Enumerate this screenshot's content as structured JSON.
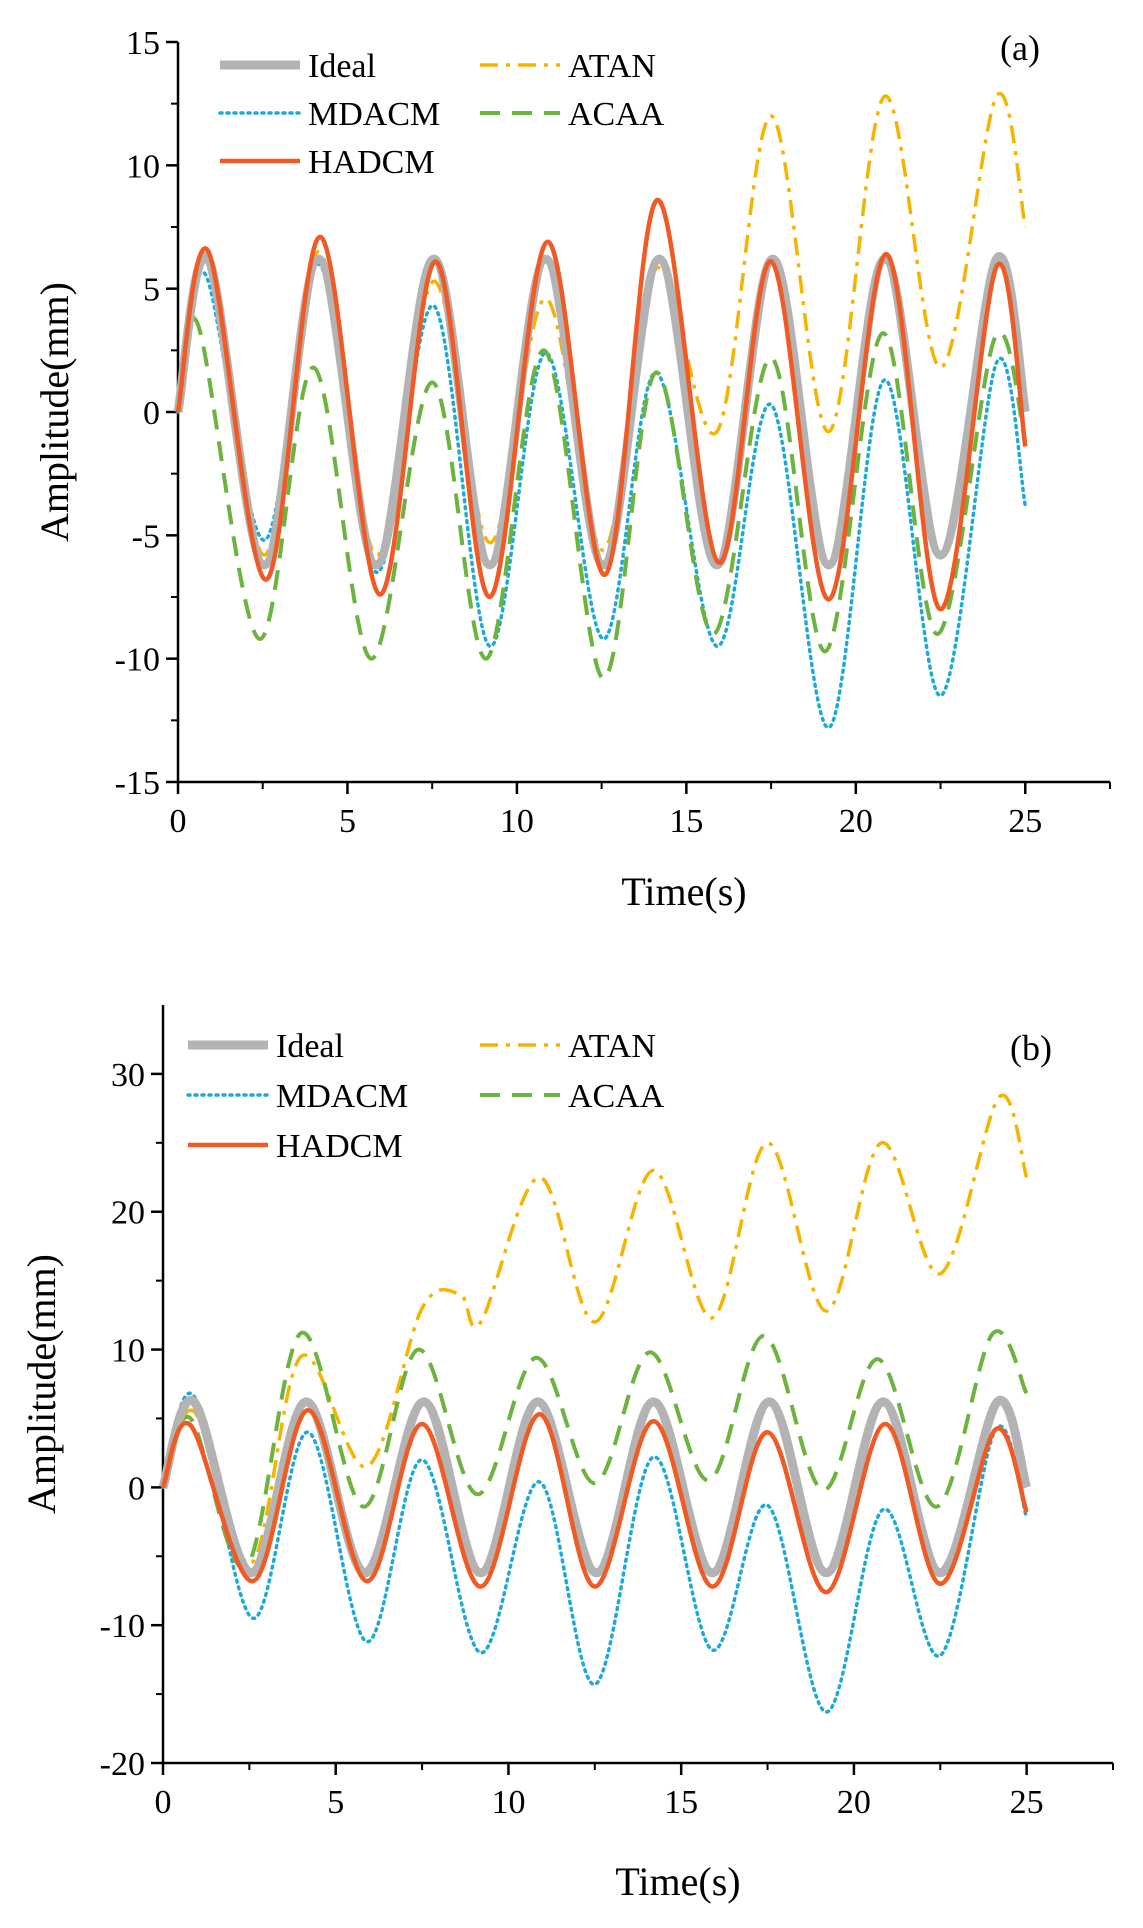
{
  "chart_data": [
    {
      "panel": "(a)",
      "type": "line",
      "xlabel": "Time(s)",
      "ylabel": "Amplitude(mm)",
      "xlim": [
        0,
        27.5
      ],
      "ylim": [
        -15,
        15
      ],
      "xticks": [
        "0",
        "5",
        "10",
        "15",
        "20",
        "25"
      ],
      "yticks": [
        "-15",
        "-10",
        "-5",
        "0",
        "5",
        "10",
        "15"
      ],
      "xtick_values": [
        0,
        5,
        10,
        15,
        20,
        25
      ],
      "ytick_values": [
        -15,
        -10,
        -5,
        0,
        5,
        10,
        15
      ],
      "legend": [
        "Ideal",
        "ATAN",
        "MDACM",
        "ACAA",
        "HADCM"
      ],
      "series": [
        {
          "name": "Ideal",
          "color": "#b3b3b3",
          "style": "solid-thick",
          "x": [
            0,
            0.9,
            2.55,
            4.15,
            5.85,
            7.55,
            9.2,
            10.85,
            12.55,
            14.2,
            15.9,
            17.55,
            19.2,
            20.85,
            22.5,
            24.15,
            25
          ],
          "y": [
            0,
            6.2,
            -6.2,
            6.2,
            -6.2,
            6.2,
            -6.2,
            6.2,
            -6.2,
            6.2,
            -6.2,
            6.2,
            -6.2,
            6.2,
            -5.8,
            6.2,
            0
          ]
        },
        {
          "name": "ATAN",
          "color": "#f5b400",
          "style": "dashdot",
          "x": [
            0,
            0.9,
            2.55,
            4.15,
            5.85,
            7.55,
            9.2,
            10.85,
            12.55,
            14.1,
            15.9,
            17.5,
            19.2,
            20.85,
            22.5,
            24.15,
            25
          ],
          "y": [
            0,
            6.2,
            -5.8,
            6.5,
            -5.8,
            5.3,
            -5.3,
            4.6,
            -5.6,
            5.8,
            -0.8,
            12.0,
            -0.8,
            12.8,
            1.8,
            12.8,
            7.5
          ]
        },
        {
          "name": "MDACM",
          "color": "#1fa9d6",
          "style": "dotted",
          "x": [
            0,
            0.8,
            2.55,
            4.15,
            5.85,
            7.55,
            9.2,
            10.85,
            12.55,
            14.1,
            15.9,
            17.5,
            19.2,
            20.85,
            22.5,
            24.15,
            25
          ],
          "y": [
            0,
            5.6,
            -5.2,
            6.0,
            -6.5,
            4.3,
            -9.5,
            2.4,
            -9.2,
            1.6,
            -9.5,
            0.3,
            -12.8,
            1.3,
            -11.5,
            2.0,
            -3.8
          ]
        },
        {
          "name": "ACAA",
          "color": "#6db33f",
          "style": "dashed",
          "x": [
            0,
            0.6,
            2.4,
            4.0,
            5.7,
            7.5,
            9.1,
            10.8,
            12.55,
            14.1,
            15.8,
            17.5,
            19.1,
            20.8,
            22.4,
            24.1,
            25
          ],
          "y": [
            0,
            3.5,
            -9.2,
            1.8,
            -10.0,
            1.2,
            -10.0,
            2.5,
            -10.8,
            1.6,
            -9.0,
            2.2,
            -9.7,
            3.2,
            -9.0,
            3.0,
            -1.2
          ]
        },
        {
          "name": "HADCM",
          "color": "#f05a24",
          "style": "solid",
          "x": [
            0,
            0.9,
            2.6,
            4.2,
            5.95,
            7.6,
            9.2,
            10.9,
            12.6,
            14.15,
            15.95,
            17.5,
            19.2,
            20.9,
            22.5,
            24.15,
            25
          ],
          "y": [
            0,
            6.5,
            -6.8,
            7.1,
            -7.4,
            6.1,
            -7.5,
            6.9,
            -6.6,
            8.6,
            -6.1,
            6.1,
            -7.6,
            6.4,
            -8.0,
            5.9,
            -1.4
          ]
        }
      ]
    },
    {
      "panel": "(b)",
      "type": "line",
      "xlabel": "Time(s)",
      "ylabel": "Amplitude(mm)",
      "xlim": [
        0,
        27.5
      ],
      "ylim": [
        -20,
        35
      ],
      "xticks": [
        "0",
        "5",
        "10",
        "15",
        "20",
        "25"
      ],
      "yticks": [
        "-20",
        "-10",
        "0",
        "10",
        "20",
        "30"
      ],
      "xtick_values": [
        0,
        5,
        10,
        15,
        20,
        25
      ],
      "ytick_values": [
        -20,
        -10,
        0,
        10,
        20,
        30
      ],
      "legend": [
        "Ideal",
        "ATAN",
        "MDACM",
        "ACAA",
        "HADCM"
      ],
      "series": [
        {
          "name": "Ideal",
          "color": "#b3b3b3",
          "style": "solid-thick",
          "x": [
            0,
            0.9,
            2.55,
            4.15,
            5.85,
            7.55,
            9.2,
            10.85,
            12.55,
            14.2,
            15.9,
            17.55,
            19.2,
            20.85,
            22.5,
            24.15,
            25
          ],
          "y": [
            0,
            6.2,
            -6.2,
            6.2,
            -6.2,
            6.2,
            -6.2,
            6.2,
            -6.2,
            6.2,
            -6.2,
            6.2,
            -6.2,
            6.2,
            -6.2,
            6.2,
            0
          ]
        },
        {
          "name": "ATAN",
          "color": "#f5b400",
          "style": "dashdot",
          "x": [
            0,
            0.9,
            2.55,
            4.0,
            5.9,
            7.5,
            8.6,
            9.2,
            10.9,
            12.5,
            14.2,
            15.9,
            17.5,
            19.2,
            20.8,
            22.5,
            24.2,
            25
          ],
          "y": [
            0,
            5.5,
            -5.5,
            9.5,
            1.5,
            13.0,
            14.0,
            12.0,
            22.5,
            12.0,
            23.0,
            12.3,
            25.0,
            12.8,
            25.0,
            15.5,
            28.3,
            22.5
          ]
        },
        {
          "name": "MDACM",
          "color": "#1fa9d6",
          "style": "dotted",
          "x": [
            0,
            0.9,
            2.6,
            4.2,
            5.9,
            7.5,
            9.2,
            10.9,
            12.5,
            14.2,
            15.9,
            17.5,
            19.2,
            20.85,
            22.5,
            24.1,
            25
          ],
          "y": [
            0,
            6.6,
            -9.5,
            4.0,
            -11.2,
            2.0,
            -12.0,
            0.4,
            -14.3,
            2.2,
            -11.8,
            -1.3,
            -16.3,
            -1.6,
            -12.2,
            4.2,
            -2.2
          ]
        },
        {
          "name": "ACAA",
          "color": "#6db33f",
          "style": "dashed",
          "x": [
            0,
            0.8,
            2.4,
            4.0,
            5.8,
            7.4,
            9.1,
            10.8,
            12.5,
            14.1,
            15.8,
            17.4,
            19.1,
            20.7,
            22.4,
            24.0,
            25
          ],
          "y": [
            0,
            5.0,
            -5.8,
            11.2,
            -1.4,
            10.0,
            -0.5,
            9.4,
            0.3,
            9.8,
            0.5,
            11.0,
            -0.2,
            9.3,
            -1.4,
            11.1,
            6.8
          ]
        },
        {
          "name": "HADCM",
          "color": "#f05a24",
          "style": "solid",
          "x": [
            0,
            0.8,
            2.6,
            4.2,
            5.9,
            7.5,
            9.2,
            10.9,
            12.5,
            14.2,
            15.9,
            17.5,
            19.2,
            20.9,
            22.5,
            24.1,
            25
          ],
          "y": [
            0,
            4.5,
            -6.8,
            5.6,
            -6.8,
            4.6,
            -7.2,
            5.3,
            -7.2,
            4.8,
            -7.2,
            4.0,
            -7.6,
            4.6,
            -7.0,
            4.2,
            -1.8
          ]
        }
      ]
    }
  ]
}
